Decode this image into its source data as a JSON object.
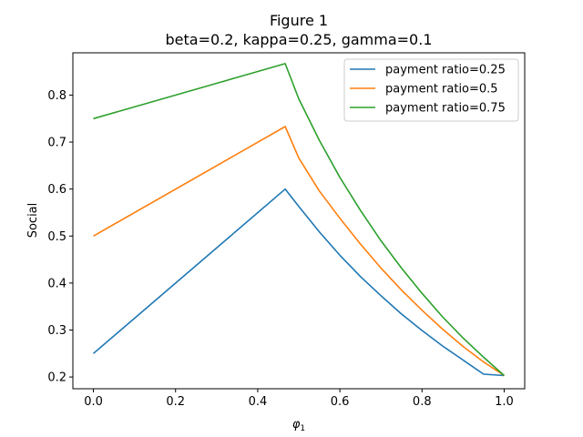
{
  "chart_data": {
    "type": "line",
    "title": "Figure 1",
    "subtitle": "beta=0.2, kappa=0.25, gamma=0.1",
    "xlabel": "φ",
    "xlabel_subscript": "1",
    "ylabel": "Social",
    "xlim": [
      -0.05,
      1.05
    ],
    "ylim": [
      0.175,
      0.89
    ],
    "xticks": [
      0.0,
      0.2,
      0.4,
      0.6,
      0.8,
      1.0
    ],
    "xtick_labels": [
      "0.0",
      "0.2",
      "0.4",
      "0.6",
      "0.8",
      "1.0"
    ],
    "yticks": [
      0.2,
      0.3,
      0.4,
      0.5,
      0.6,
      0.7,
      0.8
    ],
    "ytick_labels": [
      "0.2",
      "0.3",
      "0.4",
      "0.5",
      "0.6",
      "0.7",
      "0.8"
    ],
    "grid": false,
    "legend_position": "top-right",
    "series": [
      {
        "name": "payment ratio=0.25",
        "color": "#1f77b4",
        "x": [
          0.0,
          0.467,
          0.5,
          0.55,
          0.6,
          0.65,
          0.7,
          0.75,
          0.8,
          0.85,
          0.9,
          0.95,
          1.0
        ],
        "y": [
          0.25,
          0.6,
          0.563,
          0.509,
          0.459,
          0.414,
          0.373,
          0.334,
          0.299,
          0.266,
          0.236,
          0.206,
          0.203
        ]
      },
      {
        "name": "payment ratio=0.5",
        "color": "#ff7f0e",
        "x": [
          0.0,
          0.467,
          0.5,
          0.55,
          0.6,
          0.65,
          0.7,
          0.75,
          0.8,
          0.85,
          0.9,
          0.95,
          1.0
        ],
        "y": [
          0.5,
          0.733,
          0.666,
          0.596,
          0.538,
          0.483,
          0.432,
          0.385,
          0.342,
          0.302,
          0.265,
          0.232,
          0.203
        ]
      },
      {
        "name": "payment ratio=0.75",
        "color": "#2ca02c",
        "x": [
          0.0,
          0.467,
          0.5,
          0.55,
          0.6,
          0.65,
          0.7,
          0.75,
          0.8,
          0.85,
          0.9,
          0.95,
          1.0
        ],
        "y": [
          0.75,
          0.867,
          0.792,
          0.704,
          0.625,
          0.555,
          0.49,
          0.432,
          0.378,
          0.328,
          0.283,
          0.242,
          0.203
        ]
      }
    ]
  }
}
